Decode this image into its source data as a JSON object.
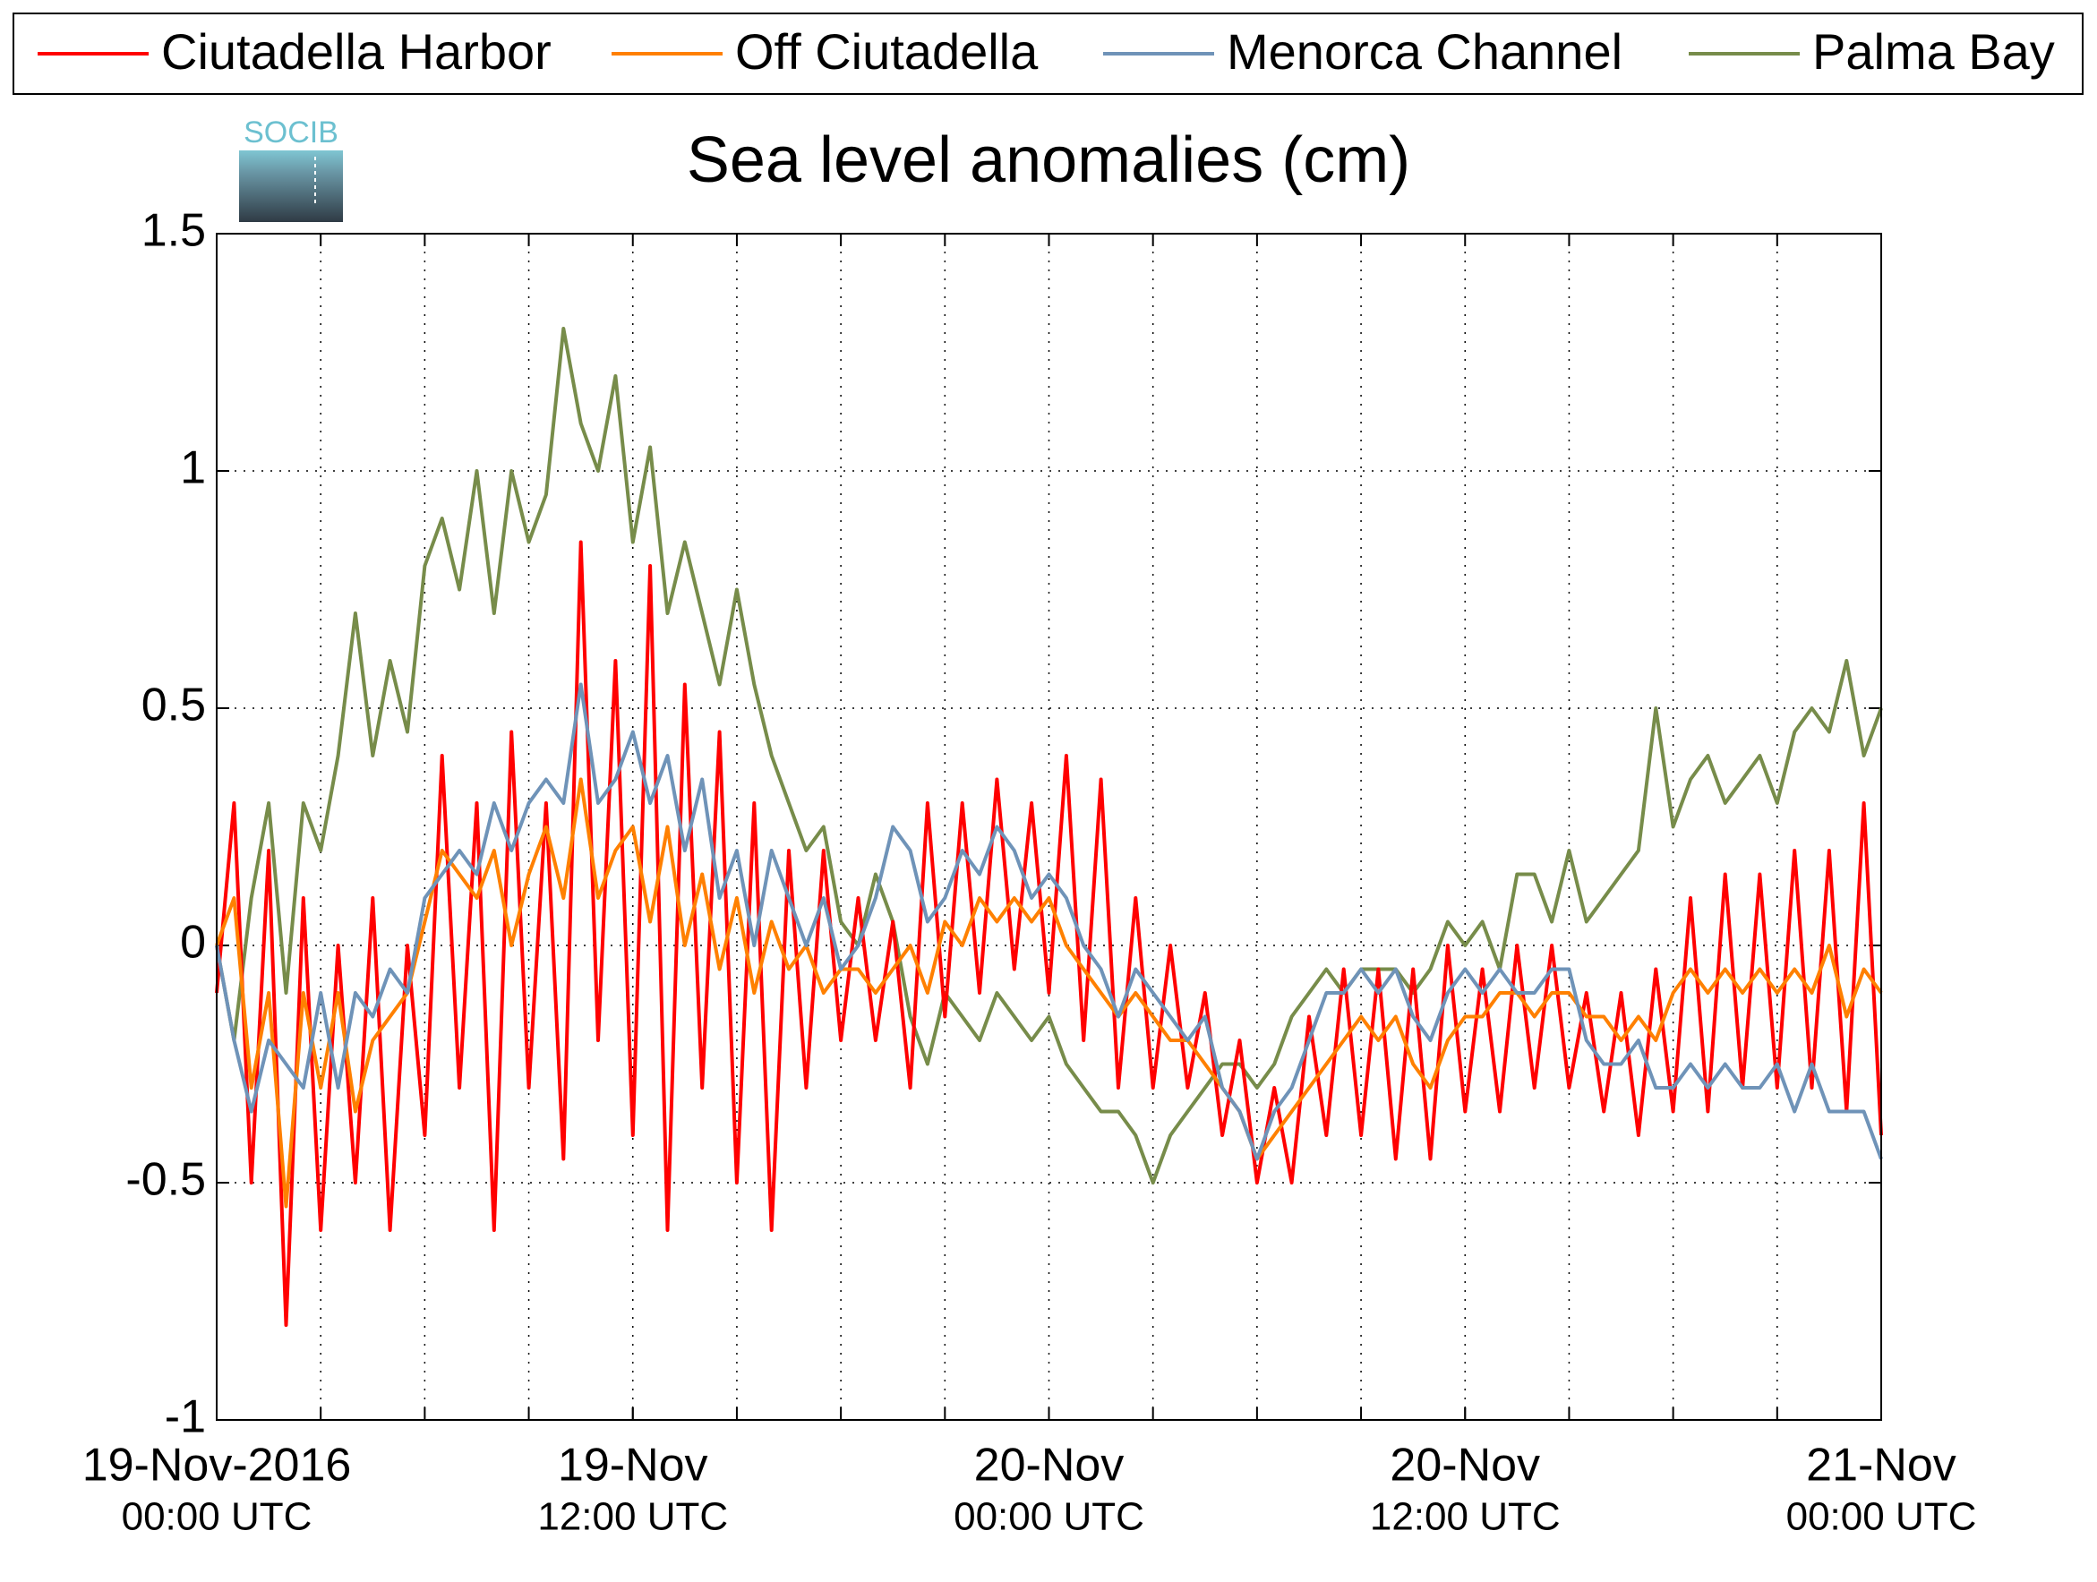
{
  "chart_data": {
    "type": "line",
    "title": "Sea level anomalies (cm)",
    "logo_text": "SOCIB",
    "x": [
      "2016-11-19T00:00",
      "2016-11-19T00:30",
      "2016-11-19T01:00",
      "2016-11-19T01:30",
      "2016-11-19T02:00",
      "2016-11-19T02:30",
      "2016-11-19T03:00",
      "2016-11-19T03:30",
      "2016-11-19T04:00",
      "2016-11-19T04:30",
      "2016-11-19T05:00",
      "2016-11-19T05:30",
      "2016-11-19T06:00",
      "2016-11-19T06:30",
      "2016-11-19T07:00",
      "2016-11-19T07:30",
      "2016-11-19T08:00",
      "2016-11-19T08:30",
      "2016-11-19T09:00",
      "2016-11-19T09:30",
      "2016-11-19T10:00",
      "2016-11-19T10:30",
      "2016-11-19T11:00",
      "2016-11-19T11:30",
      "2016-11-19T12:00",
      "2016-11-19T12:30",
      "2016-11-19T13:00",
      "2016-11-19T13:30",
      "2016-11-19T14:00",
      "2016-11-19T14:30",
      "2016-11-19T15:00",
      "2016-11-19T15:30",
      "2016-11-19T16:00",
      "2016-11-19T16:30",
      "2016-11-19T17:00",
      "2016-11-19T17:30",
      "2016-11-19T18:00",
      "2016-11-19T18:30",
      "2016-11-19T19:00",
      "2016-11-19T19:30",
      "2016-11-19T20:00",
      "2016-11-19T20:30",
      "2016-11-19T21:00",
      "2016-11-19T21:30",
      "2016-11-19T22:00",
      "2016-11-19T22:30",
      "2016-11-19T23:00",
      "2016-11-19T23:30",
      "2016-11-20T00:00",
      "2016-11-20T00:30",
      "2016-11-20T01:00",
      "2016-11-20T01:30",
      "2016-11-20T02:00",
      "2016-11-20T02:30",
      "2016-11-20T03:00",
      "2016-11-20T03:30",
      "2016-11-20T04:00",
      "2016-11-20T04:30",
      "2016-11-20T05:00",
      "2016-11-20T05:30",
      "2016-11-20T06:00",
      "2016-11-20T06:30",
      "2016-11-20T07:00",
      "2016-11-20T07:30",
      "2016-11-20T08:00",
      "2016-11-20T08:30",
      "2016-11-20T09:00",
      "2016-11-20T09:30",
      "2016-11-20T10:00",
      "2016-11-20T10:30",
      "2016-11-20T11:00",
      "2016-11-20T11:30",
      "2016-11-20T12:00",
      "2016-11-20T12:30",
      "2016-11-20T13:00",
      "2016-11-20T13:30",
      "2016-11-20T14:00",
      "2016-11-20T14:30",
      "2016-11-20T15:00",
      "2016-11-20T15:30",
      "2016-11-20T16:00",
      "2016-11-20T16:30",
      "2016-11-20T17:00",
      "2016-11-20T17:30",
      "2016-11-20T18:00",
      "2016-11-20T18:30",
      "2016-11-20T19:00",
      "2016-11-20T19:30",
      "2016-11-20T20:00",
      "2016-11-20T20:30",
      "2016-11-20T21:00",
      "2016-11-20T21:30",
      "2016-11-20T22:00",
      "2016-11-20T22:30",
      "2016-11-20T23:00",
      "2016-11-20T23:30",
      "2016-11-21T00:00"
    ],
    "series": [
      {
        "name": "Ciutadella Harbor",
        "color": "#ff0000",
        "values": [
          -0.1,
          0.3,
          -0.5,
          0.2,
          -0.8,
          0.1,
          -0.6,
          0.0,
          -0.5,
          0.1,
          -0.6,
          0.0,
          -0.4,
          0.4,
          -0.3,
          0.3,
          -0.6,
          0.45,
          -0.3,
          0.3,
          -0.45,
          0.85,
          -0.2,
          0.6,
          -0.4,
          0.8,
          -0.6,
          0.55,
          -0.3,
          0.45,
          -0.5,
          0.3,
          -0.6,
          0.2,
          -0.3,
          0.2,
          -0.2,
          0.1,
          -0.2,
          0.05,
          -0.3,
          0.3,
          -0.15,
          0.3,
          -0.1,
          0.35,
          -0.05,
          0.3,
          -0.1,
          0.4,
          -0.2,
          0.35,
          -0.3,
          0.1,
          -0.3,
          0.0,
          -0.3,
          -0.1,
          -0.4,
          -0.2,
          -0.5,
          -0.3,
          -0.5,
          -0.15,
          -0.4,
          -0.05,
          -0.4,
          -0.05,
          -0.45,
          -0.05,
          -0.45,
          0.0,
          -0.35,
          -0.05,
          -0.35,
          0.0,
          -0.3,
          0.0,
          -0.3,
          -0.1,
          -0.35,
          -0.1,
          -0.4,
          -0.05,
          -0.35,
          0.1,
          -0.35,
          0.15,
          -0.3,
          0.15,
          -0.3,
          0.2,
          -0.3,
          0.2,
          -0.35,
          0.3,
          -0.4
        ]
      },
      {
        "name": "Off Ciutadella",
        "color": "#ff8000",
        "values": [
          0.0,
          0.1,
          -0.3,
          -0.1,
          -0.55,
          -0.1,
          -0.3,
          -0.1,
          -0.35,
          -0.2,
          -0.15,
          -0.1,
          0.05,
          0.2,
          0.15,
          0.1,
          0.2,
          0.0,
          0.15,
          0.25,
          0.1,
          0.35,
          0.1,
          0.2,
          0.25,
          0.05,
          0.25,
          0.0,
          0.15,
          -0.05,
          0.1,
          -0.1,
          0.05,
          -0.05,
          0.0,
          -0.1,
          -0.05,
          -0.05,
          -0.1,
          -0.05,
          0.0,
          -0.1,
          0.05,
          0.0,
          0.1,
          0.05,
          0.1,
          0.05,
          0.1,
          0.0,
          -0.05,
          -0.1,
          -0.15,
          -0.1,
          -0.15,
          -0.2,
          -0.2,
          -0.25,
          -0.3,
          -0.35,
          -0.45,
          -0.4,
          -0.35,
          -0.3,
          -0.25,
          -0.2,
          -0.15,
          -0.2,
          -0.15,
          -0.25,
          -0.3,
          -0.2,
          -0.15,
          -0.15,
          -0.1,
          -0.1,
          -0.15,
          -0.1,
          -0.1,
          -0.15,
          -0.15,
          -0.2,
          -0.15,
          -0.2,
          -0.1,
          -0.05,
          -0.1,
          -0.05,
          -0.1,
          -0.05,
          -0.1,
          -0.05,
          -0.1,
          0.0,
          -0.15,
          -0.05,
          -0.1
        ]
      },
      {
        "name": "Menorca Channel",
        "color": "#6f93b8",
        "values": [
          0.0,
          -0.2,
          -0.35,
          -0.2,
          -0.25,
          -0.3,
          -0.1,
          -0.3,
          -0.1,
          -0.15,
          -0.05,
          -0.1,
          0.1,
          0.15,
          0.2,
          0.15,
          0.3,
          0.2,
          0.3,
          0.35,
          0.3,
          0.55,
          0.3,
          0.35,
          0.45,
          0.3,
          0.4,
          0.2,
          0.35,
          0.1,
          0.2,
          0.0,
          0.2,
          0.1,
          0.0,
          0.1,
          -0.05,
          0.0,
          0.1,
          0.25,
          0.2,
          0.05,
          0.1,
          0.2,
          0.15,
          0.25,
          0.2,
          0.1,
          0.15,
          0.1,
          0.0,
          -0.05,
          -0.15,
          -0.05,
          -0.1,
          -0.15,
          -0.2,
          -0.15,
          -0.3,
          -0.35,
          -0.45,
          -0.35,
          -0.3,
          -0.2,
          -0.1,
          -0.1,
          -0.05,
          -0.1,
          -0.05,
          -0.15,
          -0.2,
          -0.1,
          -0.05,
          -0.1,
          -0.05,
          -0.1,
          -0.1,
          -0.05,
          -0.05,
          -0.2,
          -0.25,
          -0.25,
          -0.2,
          -0.3,
          -0.3,
          -0.25,
          -0.3,
          -0.25,
          -0.3,
          -0.3,
          -0.25,
          -0.35,
          -0.25,
          -0.35,
          -0.35,
          -0.35,
          -0.45
        ]
      },
      {
        "name": "Palma Bay",
        "color": "#778c4a",
        "values": [
          0.0,
          -0.2,
          0.1,
          0.3,
          -0.1,
          0.3,
          0.2,
          0.4,
          0.7,
          0.4,
          0.6,
          0.45,
          0.8,
          0.9,
          0.75,
          1.0,
          0.7,
          1.0,
          0.85,
          0.95,
          1.3,
          1.1,
          1.0,
          1.2,
          0.85,
          1.05,
          0.7,
          0.85,
          0.7,
          0.55,
          0.75,
          0.55,
          0.4,
          0.3,
          0.2,
          0.25,
          0.05,
          0.0,
          0.15,
          0.05,
          -0.15,
          -0.25,
          -0.1,
          -0.15,
          -0.2,
          -0.1,
          -0.15,
          -0.2,
          -0.15,
          -0.25,
          -0.3,
          -0.35,
          -0.35,
          -0.4,
          -0.5,
          -0.4,
          -0.35,
          -0.3,
          -0.25,
          -0.25,
          -0.3,
          -0.25,
          -0.15,
          -0.1,
          -0.05,
          -0.1,
          -0.05,
          -0.05,
          -0.05,
          -0.1,
          -0.05,
          0.05,
          0.0,
          0.05,
          -0.05,
          0.15,
          0.15,
          0.05,
          0.2,
          0.05,
          0.1,
          0.15,
          0.2,
          0.5,
          0.25,
          0.35,
          0.4,
          0.3,
          0.35,
          0.4,
          0.3,
          0.45,
          0.5,
          0.45,
          0.6,
          0.4,
          0.5
        ]
      }
    ],
    "xlim": [
      "2016-11-19T00:00",
      "2016-11-21T00:00"
    ],
    "xticks": [
      {
        "value": "2016-11-19T00:00",
        "label": "19-Nov-2016",
        "sublabel": "00:00 UTC"
      },
      {
        "value": "2016-11-19T12:00",
        "label": "19-Nov",
        "sublabel": "12:00 UTC"
      },
      {
        "value": "2016-11-20T00:00",
        "label": "20-Nov",
        "sublabel": "00:00 UTC"
      },
      {
        "value": "2016-11-20T12:00",
        "label": "20-Nov",
        "sublabel": "12:00 UTC"
      },
      {
        "value": "2016-11-21T00:00",
        "label": "21-Nov",
        "sublabel": "00:00 UTC"
      }
    ],
    "xminor_ticks": [
      "2016-11-19T00:00",
      "2016-11-19T03:00",
      "2016-11-19T06:00",
      "2016-11-19T09:00",
      "2016-11-19T12:00",
      "2016-11-19T15:00",
      "2016-11-19T18:00",
      "2016-11-19T21:00",
      "2016-11-20T00:00",
      "2016-11-20T03:00",
      "2016-11-20T06:00",
      "2016-11-20T09:00",
      "2016-11-20T12:00",
      "2016-11-20T15:00",
      "2016-11-20T18:00",
      "2016-11-20T21:00",
      "2016-11-21T00:00"
    ],
    "ylim": [
      -1,
      1.5
    ],
    "yticks": [
      -1,
      -0.5,
      0,
      0.5,
      1,
      1.5
    ],
    "grid": true,
    "legend": "top"
  }
}
